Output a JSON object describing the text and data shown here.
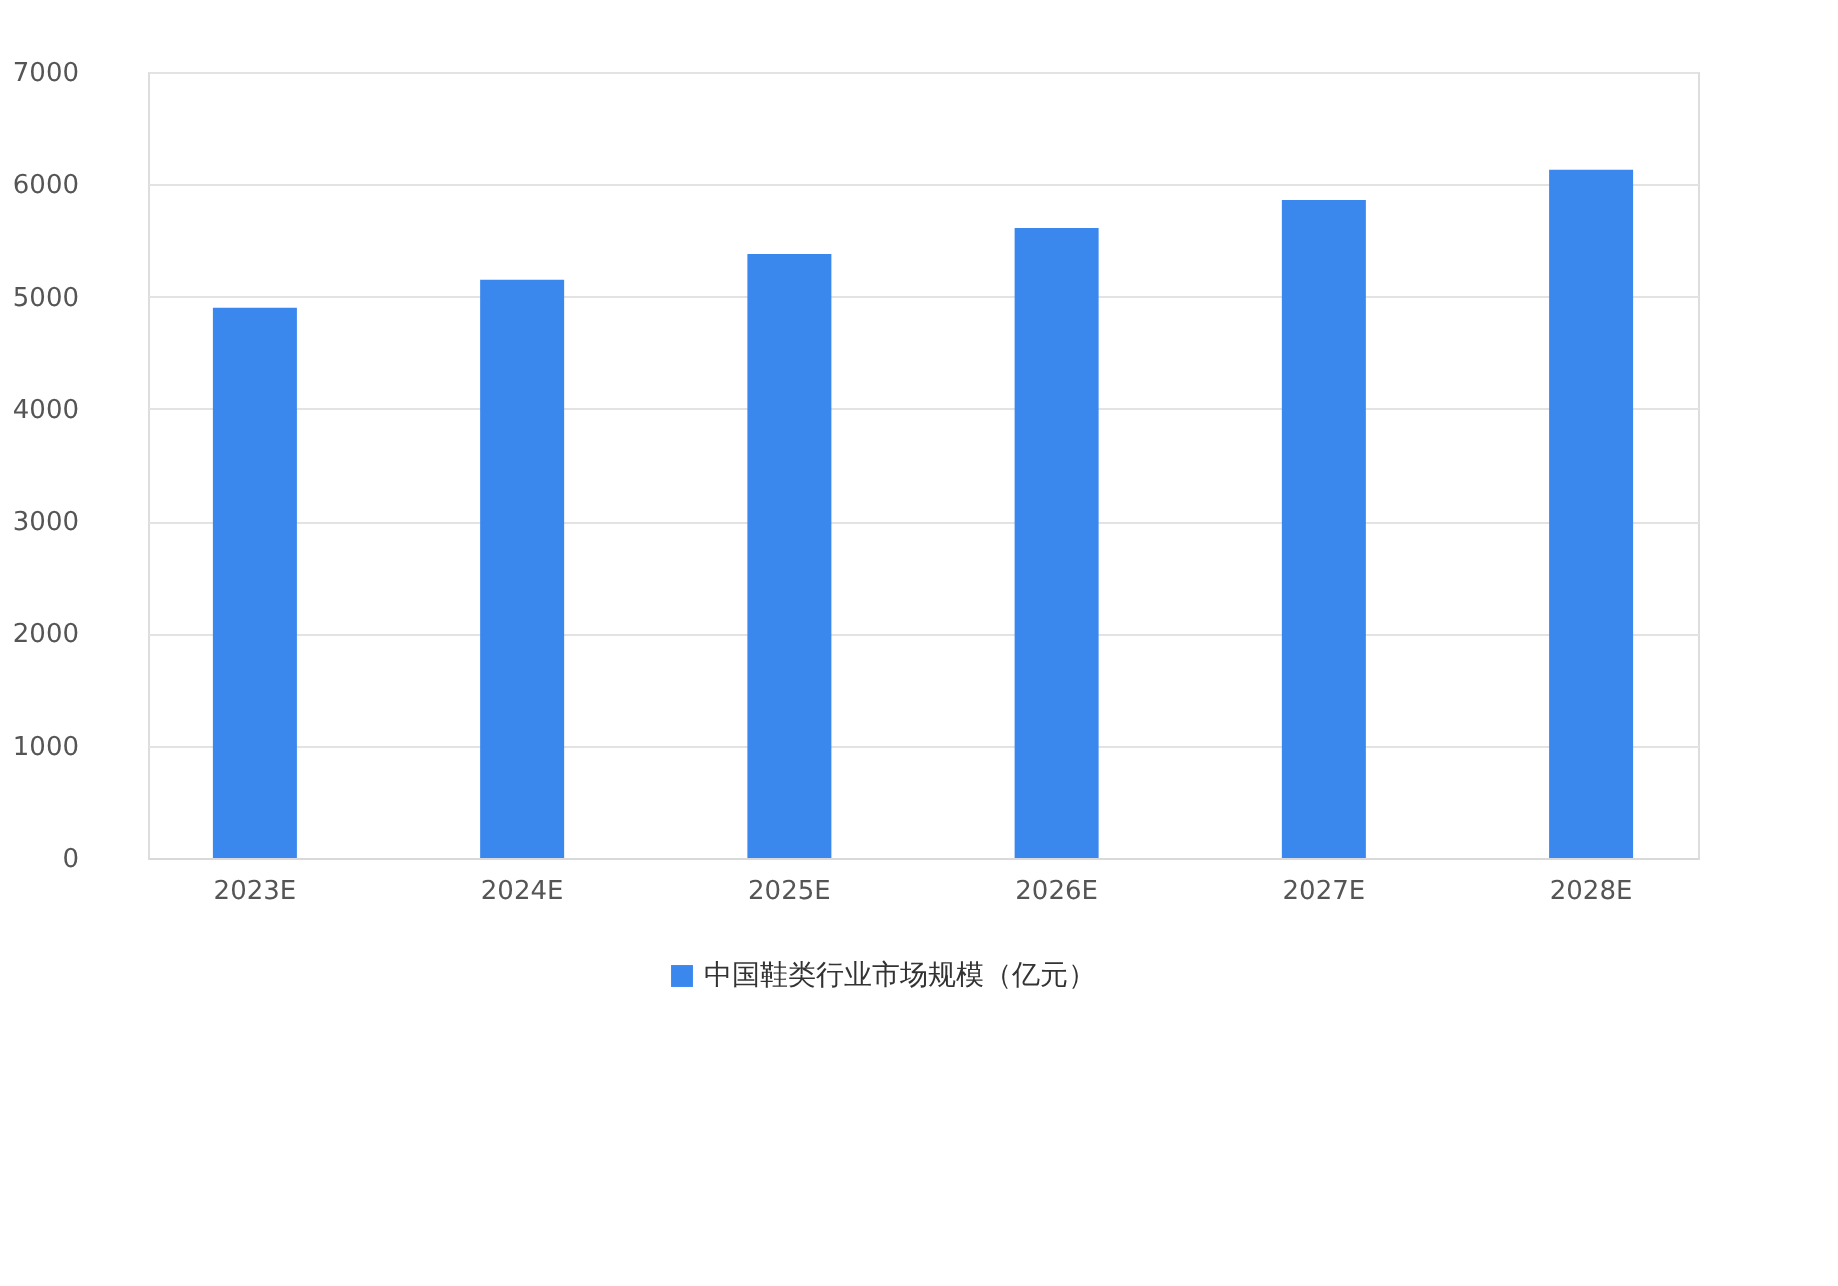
{
  "chart_data": {
    "type": "bar",
    "categories": [
      "2023E",
      "2024E",
      "2025E",
      "2026E",
      "2027E",
      "2028E"
    ],
    "series": [
      {
        "name": "中国鞋类行业市场规模（亿元）",
        "color": "#3a88ee",
        "values": [
          4900,
          5150,
          5380,
          5610,
          5860,
          6130
        ]
      }
    ],
    "ylim": [
      0,
      7000
    ],
    "yticks": [
      0,
      1000,
      2000,
      3000,
      4000,
      5000,
      6000,
      7000
    ],
    "grid": "y",
    "legend": "bottom"
  }
}
